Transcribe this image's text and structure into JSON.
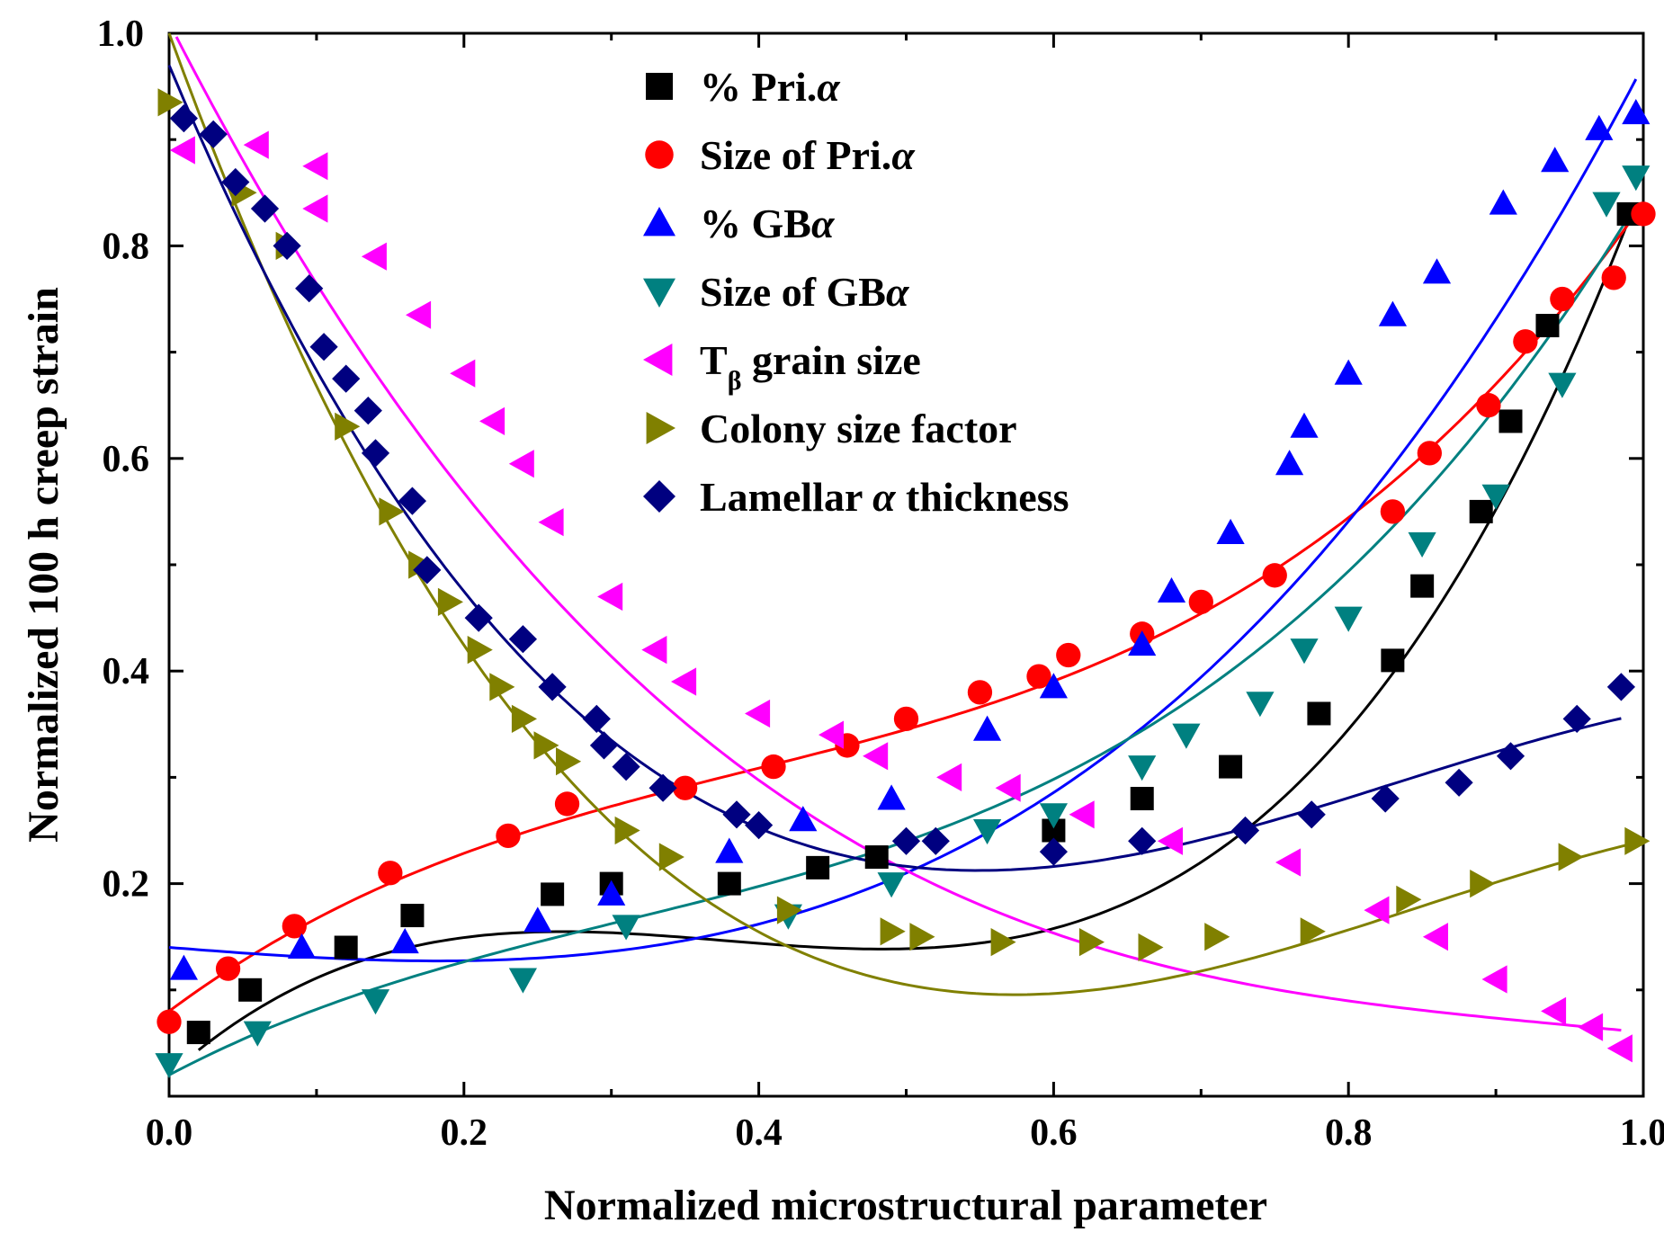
{
  "chart_data": {
    "type": "scatter",
    "title": "",
    "xlabel": "Normalized microstructural parameter",
    "ylabel": "Normalized 100 h creep strain",
    "xlim": [
      0.0,
      1.0
    ],
    "ylim": [
      0.0,
      1.0
    ],
    "xticks": [
      "0.0",
      "0.2",
      "0.4",
      "0.6",
      "0.8",
      "1.0"
    ],
    "xtick_values": [
      0.0,
      0.2,
      0.4,
      0.6,
      0.8,
      1.0
    ],
    "yticks": [
      "0.2",
      "0.4",
      "0.6",
      "0.8",
      "1.0"
    ],
    "ytick_values": [
      0.2,
      0.4,
      0.6,
      0.8,
      1.0
    ],
    "grid": false,
    "legend_position": "top-center",
    "series": [
      {
        "name": "% Pri.α",
        "label_main": "% Pri.",
        "label_italic": "α",
        "label_sub": "",
        "label_rest": "",
        "marker": "square",
        "color": "#000000",
        "x": [
          0.02,
          0.055,
          0.12,
          0.165,
          0.26,
          0.3,
          0.38,
          0.44,
          0.48,
          0.6,
          0.66,
          0.72,
          0.78,
          0.83,
          0.85,
          0.89,
          0.91,
          0.935,
          0.99
        ],
        "y": [
          0.06,
          0.1,
          0.14,
          0.17,
          0.19,
          0.2,
          0.2,
          0.215,
          0.225,
          0.25,
          0.28,
          0.31,
          0.36,
          0.41,
          0.48,
          0.55,
          0.635,
          0.725,
          0.83
        ],
        "fit": [
          0.02,
          1.24,
          -3.61,
          3.21
        ]
      },
      {
        "name": "Size of Pri.α",
        "label_main": "Size of Pri.",
        "label_italic": "α",
        "label_sub": "",
        "label_rest": "",
        "marker": "circle",
        "color": "#ff0000",
        "x": [
          0.0,
          0.04,
          0.085,
          0.15,
          0.23,
          0.27,
          0.35,
          0.41,
          0.46,
          0.5,
          0.55,
          0.59,
          0.61,
          0.66,
          0.7,
          0.75,
          0.83,
          0.855,
          0.895,
          0.92,
          0.945,
          0.98,
          1.0
        ],
        "y": [
          0.07,
          0.12,
          0.16,
          0.21,
          0.245,
          0.275,
          0.29,
          0.31,
          0.33,
          0.355,
          0.38,
          0.395,
          0.415,
          0.435,
          0.465,
          0.49,
          0.55,
          0.605,
          0.65,
          0.71,
          0.75,
          0.77,
          0.83
        ],
        "fit": [
          0.08,
          1.03,
          -1.73,
          1.46
        ]
      },
      {
        "name": "% GBα",
        "label_main": "% GB",
        "label_italic": "α",
        "label_sub": "",
        "label_rest": "",
        "marker": "triangle-up",
        "color": "#0000ff",
        "x": [
          0.01,
          0.09,
          0.16,
          0.25,
          0.3,
          0.38,
          0.43,
          0.49,
          0.555,
          0.6,
          0.66,
          0.68,
          0.72,
          0.76,
          0.77,
          0.8,
          0.83,
          0.86,
          0.905,
          0.94,
          0.97,
          0.995
        ],
        "y": [
          0.12,
          0.14,
          0.145,
          0.165,
          0.19,
          0.23,
          0.26,
          0.28,
          0.345,
          0.385,
          0.425,
          0.475,
          0.53,
          0.595,
          0.63,
          0.68,
          0.735,
          0.775,
          0.84,
          0.88,
          0.91,
          0.925
        ],
        "fit": [
          0.14,
          -0.11,
          0.06,
          0.88
        ]
      },
      {
        "name": "Size of GBα",
        "label_main": "Size of GB",
        "label_italic": "α",
        "label_sub": "",
        "label_rest": "",
        "marker": "triangle-down",
        "color": "#008080",
        "x": [
          0.0,
          0.06,
          0.14,
          0.24,
          0.31,
          0.42,
          0.49,
          0.555,
          0.6,
          0.66,
          0.69,
          0.74,
          0.77,
          0.8,
          0.85,
          0.9,
          0.945,
          0.975,
          0.995
        ],
        "y": [
          0.03,
          0.06,
          0.09,
          0.11,
          0.16,
          0.17,
          0.2,
          0.25,
          0.265,
          0.31,
          0.34,
          0.37,
          0.42,
          0.45,
          0.52,
          0.565,
          0.67,
          0.84,
          0.865
        ],
        "fit": [
          0.02,
          0.73,
          -1.26,
          1.36
        ]
      },
      {
        "name": "Tβ grain size",
        "label_main": "T",
        "label_italic": "",
        "label_sub": "β",
        "label_rest": " grain size",
        "marker": "triangle-left",
        "color": "#ff00ff",
        "x": [
          0.01,
          0.06,
          0.1,
          0.1,
          0.14,
          0.17,
          0.2,
          0.22,
          0.24,
          0.26,
          0.3,
          0.33,
          0.35,
          0.4,
          0.45,
          0.48,
          0.53,
          0.57,
          0.62,
          0.68,
          0.76,
          0.82,
          0.86,
          0.9,
          0.94,
          0.965,
          0.985
        ],
        "y": [
          0.89,
          0.895,
          0.875,
          0.835,
          0.79,
          0.735,
          0.68,
          0.635,
          0.595,
          0.54,
          0.47,
          0.42,
          0.39,
          0.36,
          0.34,
          0.32,
          0.3,
          0.29,
          0.265,
          0.24,
          0.22,
          0.175,
          0.15,
          0.11,
          0.08,
          0.065,
          0.045
        ],
        "fit": [
          1.01,
          -2.72,
          2.73,
          -0.96
        ]
      },
      {
        "name": "Colony size factor",
        "label_main": "Colony size factor",
        "label_italic": "",
        "label_sub": "",
        "label_rest": "",
        "marker": "triangle-right",
        "color": "#808000",
        "x": [
          0.0,
          0.05,
          0.08,
          0.12,
          0.15,
          0.17,
          0.19,
          0.21,
          0.225,
          0.24,
          0.255,
          0.27,
          0.31,
          0.34,
          0.42,
          0.49,
          0.51,
          0.565,
          0.625,
          0.665,
          0.71,
          0.775,
          0.84,
          0.89,
          0.95,
          0.995
        ],
        "y": [
          0.935,
          0.85,
          0.8,
          0.63,
          0.55,
          0.5,
          0.465,
          0.42,
          0.385,
          0.355,
          0.33,
          0.315,
          0.25,
          0.225,
          0.175,
          0.155,
          0.15,
          0.145,
          0.145,
          0.14,
          0.15,
          0.155,
          0.185,
          0.2,
          0.225,
          0.24
        ],
        "fit": [
          1.0,
          -3.8,
          5.0,
          -1.96
        ]
      },
      {
        "name": "Lamellar α thickness",
        "label_main": "Lamellar ",
        "label_italic": "α",
        "label_sub": "",
        "label_rest": " thickness",
        "marker": "diamond",
        "color": "#000080",
        "x": [
          0.01,
          0.03,
          0.045,
          0.065,
          0.08,
          0.095,
          0.105,
          0.12,
          0.135,
          0.14,
          0.165,
          0.175,
          0.21,
          0.24,
          0.26,
          0.29,
          0.295,
          0.31,
          0.335,
          0.385,
          0.4,
          0.5,
          0.52,
          0.6,
          0.66,
          0.73,
          0.775,
          0.825,
          0.875,
          0.91,
          0.955,
          0.985
        ],
        "y": [
          0.92,
          0.905,
          0.86,
          0.835,
          0.8,
          0.76,
          0.705,
          0.675,
          0.645,
          0.605,
          0.56,
          0.495,
          0.45,
          0.43,
          0.385,
          0.355,
          0.33,
          0.31,
          0.29,
          0.265,
          0.255,
          0.24,
          0.24,
          0.23,
          0.24,
          0.25,
          0.265,
          0.28,
          0.295,
          0.32,
          0.355,
          0.385
        ],
        "fit": [
          0.97,
          -3.3,
          4.48,
          -1.79
        ]
      }
    ]
  }
}
